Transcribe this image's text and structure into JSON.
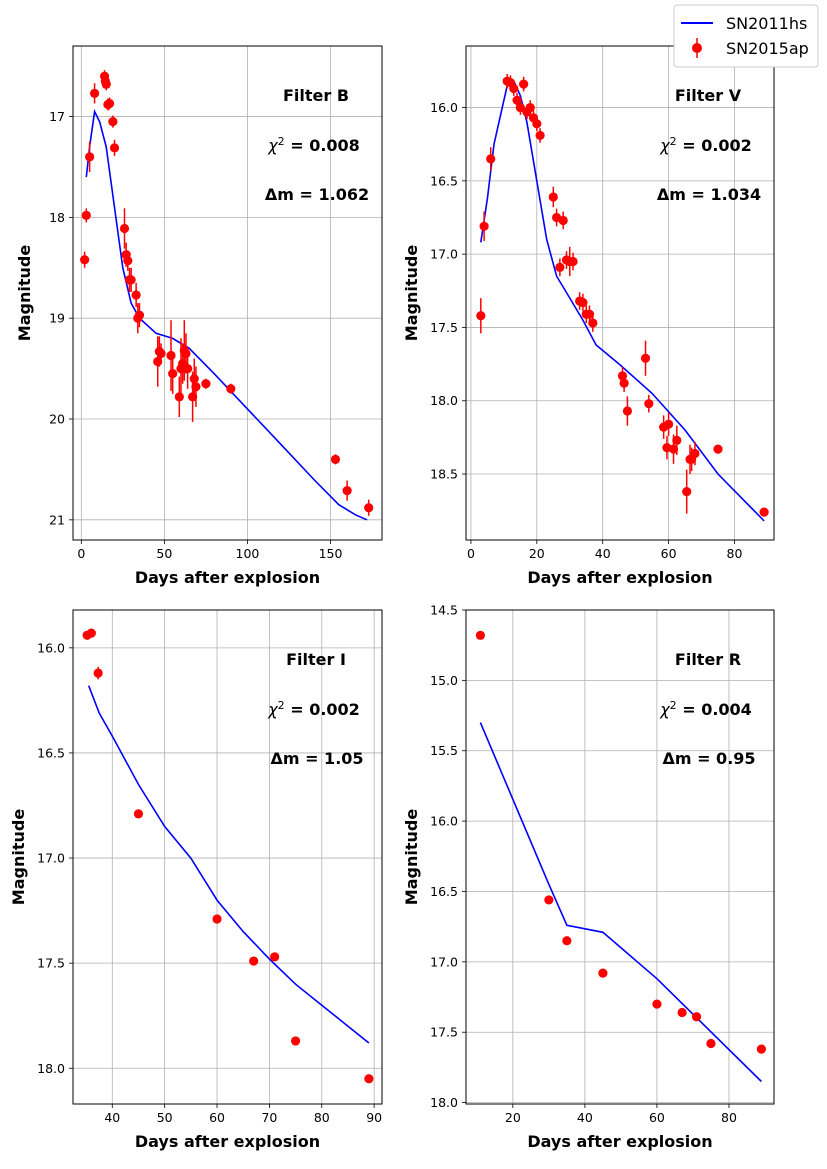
{
  "legend": {
    "model_label": "SN2011hs",
    "data_label": "SN2015ap",
    "model_color": "#0000ff",
    "data_color": "#ff0000",
    "position": "top-right"
  },
  "chart_data": [
    {
      "type": "scatter",
      "panel": "top-left",
      "xlabel": "Days after explosion",
      "ylabel": "Magnitude",
      "xlim": [
        -5,
        181
      ],
      "ylim": [
        21.2,
        16.3
      ],
      "y_inverted": true,
      "grid": true,
      "xticks": [
        0,
        50,
        100,
        150
      ],
      "yticks": [
        17,
        18,
        19,
        20,
        21
      ],
      "annotations": {
        "filter": "Filter B",
        "chi2": "= 0.008",
        "dm": "Δm = 1.062"
      },
      "model": {
        "name": "SN2011hs",
        "x": [
          3,
          5,
          8,
          11,
          15,
          20,
          25,
          30,
          35,
          45,
          55,
          65,
          80,
          100,
          120,
          140,
          155,
          165,
          172
        ],
        "y": [
          17.6,
          17.3,
          16.95,
          17.05,
          17.3,
          17.9,
          18.5,
          18.85,
          19.0,
          19.15,
          19.2,
          19.3,
          19.55,
          19.9,
          20.25,
          20.6,
          20.85,
          20.95,
          21.0
        ]
      },
      "observations": {
        "name": "SN2015ap",
        "x": [
          2,
          3,
          5,
          8,
          14,
          14.5,
          15,
          16,
          17,
          19,
          20,
          26,
          27,
          28,
          29,
          30,
          33,
          34,
          35,
          46,
          47,
          48,
          54,
          55,
          59,
          60,
          61,
          62,
          63,
          64,
          67,
          68,
          69,
          75,
          90,
          153,
          160,
          173
        ],
        "y": [
          18.42,
          17.98,
          17.4,
          16.77,
          16.6,
          16.65,
          16.68,
          16.88,
          16.87,
          17.05,
          17.31,
          18.11,
          18.37,
          18.43,
          18.62,
          18.62,
          18.77,
          19.0,
          18.97,
          19.43,
          19.33,
          19.35,
          19.37,
          19.55,
          19.78,
          19.5,
          19.45,
          19.32,
          19.35,
          19.5,
          19.78,
          19.6,
          19.68,
          19.65,
          19.7,
          20.4,
          20.71,
          20.88
        ],
        "yerr": [
          0.08,
          0.07,
          0.15,
          0.1,
          0.06,
          0.06,
          0.06,
          0.06,
          0.06,
          0.06,
          0.08,
          0.2,
          0.12,
          0.1,
          0.12,
          0.12,
          0.12,
          0.15,
          0.12,
          0.25,
          0.15,
          0.1,
          0.35,
          0.2,
          0.2,
          0.3,
          0.2,
          0.3,
          0.2,
          0.2,
          0.25,
          0.2,
          0.2,
          0.05,
          0.05,
          0.05,
          0.1,
          0.08
        ]
      }
    },
    {
      "type": "scatter",
      "panel": "top-right",
      "xlabel": "Days after explosion",
      "ylabel": "Magnitude",
      "xlim": [
        -1.5,
        92
      ],
      "ylim": [
        18.95,
        15.58
      ],
      "y_inverted": true,
      "grid": true,
      "xticks": [
        0,
        20,
        40,
        60,
        80
      ],
      "yticks": [
        16.0,
        16.5,
        17.0,
        17.5,
        18.0,
        18.5
      ],
      "annotations": {
        "filter": "Filter V",
        "chi2": "= 0.002",
        "dm": "Δm = 1.034"
      },
      "model": {
        "name": "SN2011hs",
        "x": [
          3,
          5,
          7,
          9,
          11,
          13,
          15,
          17,
          20,
          23,
          26,
          30,
          34,
          38,
          45,
          55,
          65,
          75,
          89
        ],
        "y": [
          16.92,
          16.62,
          16.25,
          16.05,
          15.85,
          15.82,
          15.92,
          16.1,
          16.5,
          16.9,
          17.15,
          17.3,
          17.45,
          17.62,
          17.75,
          17.95,
          18.2,
          18.5,
          18.82
        ]
      },
      "observations": {
        "name": "SN2015ap",
        "x": [
          3,
          4,
          6,
          11,
          12,
          13,
          14,
          15,
          16,
          17,
          18,
          19,
          20,
          21,
          25,
          26,
          27,
          28,
          29,
          30,
          31,
          33,
          34,
          35,
          36,
          37,
          46,
          46.5,
          47.5,
          53,
          54,
          58.5,
          59.5,
          60,
          61.5,
          62.5,
          65.5,
          66.5,
          67,
          68,
          75,
          89
        ],
        "y": [
          17.42,
          16.81,
          16.35,
          15.82,
          15.83,
          15.87,
          15.95,
          16.0,
          15.84,
          16.03,
          16.0,
          16.07,
          16.11,
          16.19,
          16.61,
          16.75,
          17.09,
          16.77,
          17.04,
          17.05,
          17.05,
          17.32,
          17.33,
          17.41,
          17.41,
          17.47,
          17.83,
          17.88,
          18.07,
          17.71,
          18.02,
          18.18,
          18.32,
          18.16,
          18.33,
          18.27,
          18.62,
          18.4,
          18.4,
          18.36,
          18.33,
          18.76
        ]
      },
      "yerr": [
        0.12,
        0.1,
        0.08,
        0.05,
        0.05,
        0.05,
        0.05,
        0.05,
        0.05,
        0.05,
        0.05,
        0.05,
        0.05,
        0.05,
        0.07,
        0.06,
        0.06,
        0.06,
        0.06,
        0.1,
        0.06,
        0.06,
        0.06,
        0.06,
        0.06,
        0.06,
        0.06,
        0.06,
        0.1,
        0.12,
        0.06,
        0.08,
        0.08,
        0.08,
        0.1,
        0.1,
        0.15,
        0.1,
        0.08,
        0.08,
        0.03,
        0.03
      ]
    },
    {
      "type": "scatter",
      "panel": "bottom-left",
      "xlabel": "Days after explosion",
      "ylabel": "Magnitude",
      "xlim": [
        32.5,
        91.5
      ],
      "ylim": [
        18.17,
        15.82
      ],
      "y_inverted": true,
      "grid": true,
      "xticks": [
        40,
        50,
        60,
        70,
        80,
        90
      ],
      "yticks": [
        16.0,
        16.5,
        17.0,
        17.5,
        18.0
      ],
      "annotations": {
        "filter": "Filter I",
        "chi2": "= 0.002",
        "dm": "Δm = 1.05"
      },
      "model": {
        "name": "SN2011hs",
        "x": [
          35.5,
          37.5,
          40,
          45,
          50,
          55,
          60,
          65,
          70,
          75,
          80,
          85,
          89
        ],
        "y": [
          16.18,
          16.31,
          16.42,
          16.65,
          16.85,
          17.0,
          17.2,
          17.35,
          17.48,
          17.6,
          17.7,
          17.8,
          17.88
        ]
      },
      "observations": {
        "name": "SN2015ap",
        "x": [
          35.2,
          36,
          37.3,
          45,
          60,
          67,
          71,
          75,
          89
        ],
        "y": [
          15.94,
          15.93,
          16.12,
          16.79,
          17.29,
          17.49,
          17.47,
          17.87,
          18.05
        ]
      },
      "yerr": [
        0.02,
        0.02,
        0.03,
        0.01,
        0.01,
        0.01,
        0.01,
        0.01,
        0.01
      ]
    },
    {
      "type": "scatter",
      "panel": "bottom-right",
      "xlabel": "Days after explosion",
      "ylabel": "Magnitude",
      "xlim": [
        7,
        92.5
      ],
      "ylim": [
        18.01,
        14.5
      ],
      "y_inverted": true,
      "grid": true,
      "xticks": [
        20,
        40,
        60,
        80
      ],
      "yticks": [
        14.5,
        15.0,
        15.5,
        16.0,
        16.5,
        17.0,
        17.5,
        18.0
      ],
      "annotations": {
        "filter": "Filter R",
        "chi2": "= 0.004",
        "dm": "Δm = 0.95"
      },
      "model": {
        "name": "SN2011hs",
        "x": [
          11,
          30,
          35,
          45,
          60,
          89
        ],
        "y": [
          15.3,
          16.45,
          16.74,
          16.79,
          17.12,
          17.85
        ]
      },
      "observations": {
        "name": "SN2015ap",
        "x": [
          11,
          30,
          35,
          45,
          60,
          67,
          71,
          75,
          89
        ],
        "y": [
          14.68,
          16.56,
          16.85,
          17.08,
          17.3,
          17.36,
          17.39,
          17.58,
          17.62
        ]
      },
      "yerr": [
        0.01,
        0.01,
        0.01,
        0.01,
        0.01,
        0.01,
        0.01,
        0.01,
        0.01
      ]
    }
  ]
}
